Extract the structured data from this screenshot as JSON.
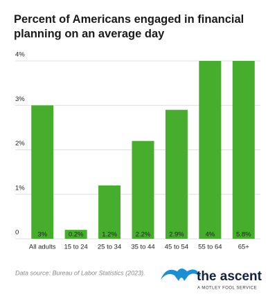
{
  "chart_data": {
    "type": "bar",
    "title": "Percent of Americans engaged in financial planning on an average day",
    "categories": [
      "All adults",
      "15 to 24",
      "25 to 34",
      "35 to 44",
      "45 to 54",
      "55 to 64",
      "65+"
    ],
    "values": [
      3,
      0.2,
      1.2,
      2.2,
      2.9,
      4,
      5.8
    ],
    "value_labels": [
      "3%",
      "0.2%",
      "1.2%",
      "2.2%",
      "2.9%",
      "4%",
      "5.8%"
    ],
    "color": "#46ae2c",
    "ylim": [
      0,
      4
    ],
    "yticks": [
      0,
      {
        "value": 1,
        "label": "1%"
      },
      {
        "value": 2,
        "label": "2%"
      },
      {
        "value": 3,
        "label": "3%"
      },
      {
        "value": 4,
        "label": "4%"
      }
    ],
    "grid": true
  },
  "source": "Data source: Bureau of Labor Statistics (2023).",
  "brand": {
    "name": "the ascent",
    "tagline": "A MOTLEY FOOL SERVICE"
  }
}
